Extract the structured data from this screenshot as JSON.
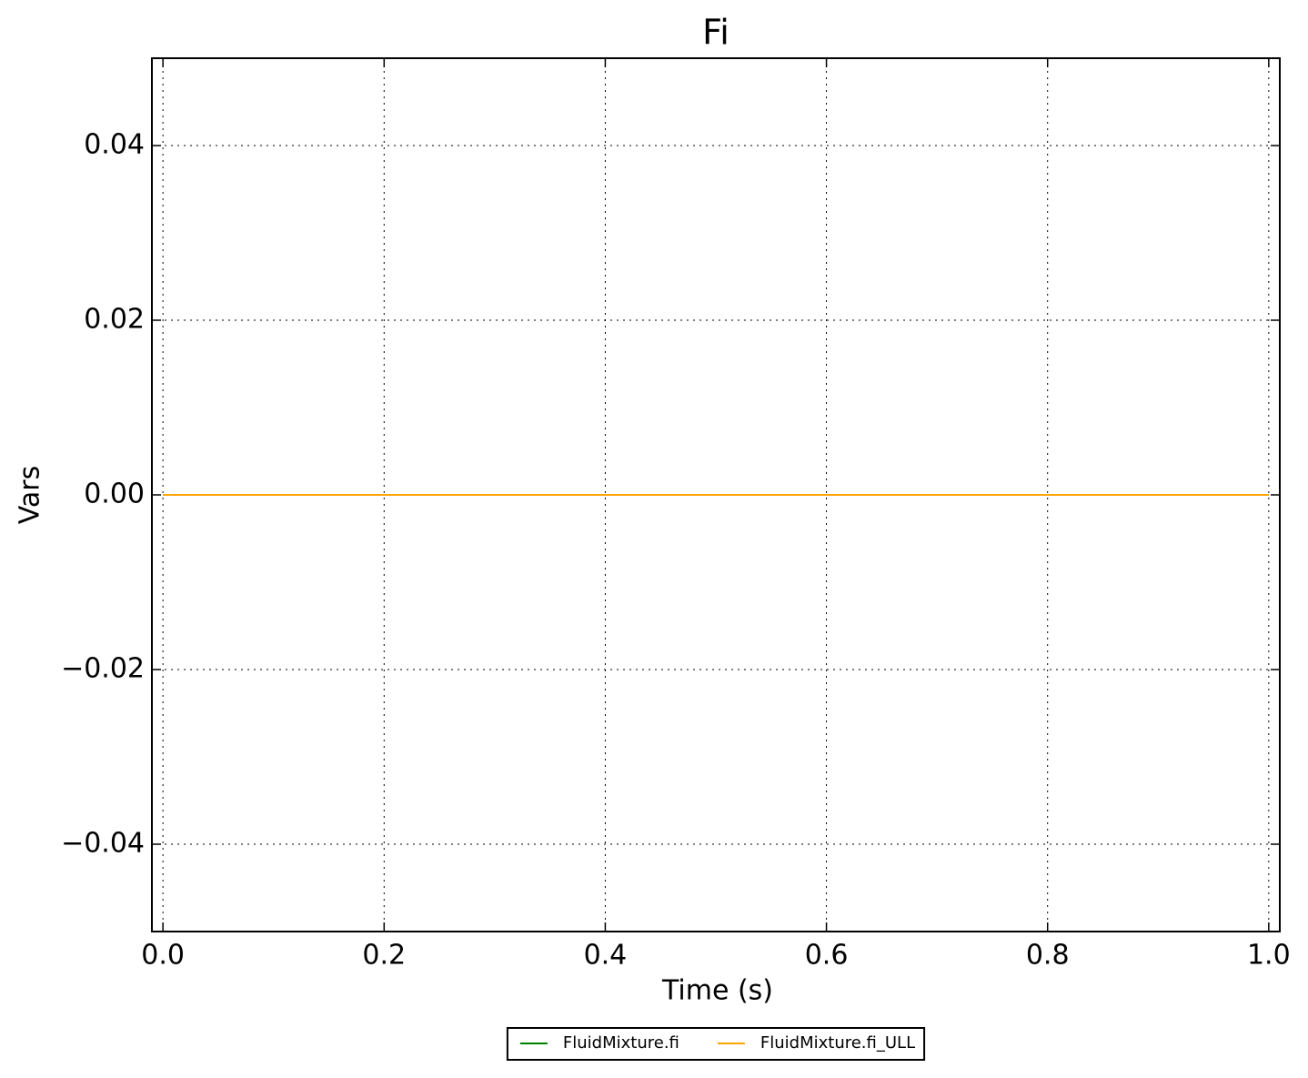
{
  "chart_data": {
    "type": "line",
    "title": "Fi",
    "x_label": "Time (s)",
    "y_label": "Vars",
    "x": [
      0,
      1
    ],
    "series": [
      {
        "name": "FluidMixture.fi",
        "color": "#008000",
        "values": [
          0,
          0
        ]
      },
      {
        "name": "FluidMixture.fi_ULL",
        "color": "#ffa500",
        "values": [
          0,
          0
        ]
      }
    ],
    "xlim": [
      -0.01,
      1.01
    ],
    "xticks": [
      {
        "value": 0,
        "label": "0.0"
      },
      0.2,
      0.4,
      0.6,
      0.8,
      {
        "value": 1,
        "label": "1.0"
      }
    ],
    "ylim": [
      -0.05,
      0.05
    ],
    "yticks": [
      {
        "value": -0.04,
        "label": "−0.04"
      },
      {
        "value": -0.02,
        "label": "−0.02"
      },
      {
        "value": 0,
        "label": "0.00"
      },
      0.02,
      0.04
    ],
    "grid": true,
    "legend": "bottom"
  }
}
